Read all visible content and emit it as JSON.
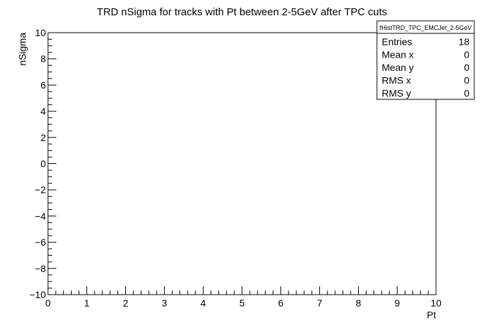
{
  "chart_data": {
    "type": "scatter",
    "title": "TRD nSigma for tracks with Pt between 2-5GeV after TPC cuts",
    "xlabel": "Pt",
    "ylabel": "nSigma",
    "xlim": [
      0,
      10
    ],
    "ylim": [
      -10,
      10
    ],
    "x_ticks": [
      "0",
      "1",
      "2",
      "3",
      "4",
      "5",
      "6",
      "7",
      "8",
      "9",
      "10"
    ],
    "y_ticks": [
      "−10",
      "−8",
      "−6",
      "−4",
      "−2",
      "0",
      "2",
      "4",
      "6",
      "8",
      "10"
    ],
    "series": [],
    "grid": false,
    "stats_box": {
      "name": "fHistTRD_TPC_EMCJet_2-5GeV",
      "placement": "top-right",
      "rows": [
        {
          "label": "Entries",
          "value": "18"
        },
        {
          "label": "Mean x",
          "value": "0"
        },
        {
          "label": "Mean y",
          "value": "0"
        },
        {
          "label": "RMS x",
          "value": "0"
        },
        {
          "label": "RMS y",
          "value": "0"
        }
      ]
    }
  }
}
